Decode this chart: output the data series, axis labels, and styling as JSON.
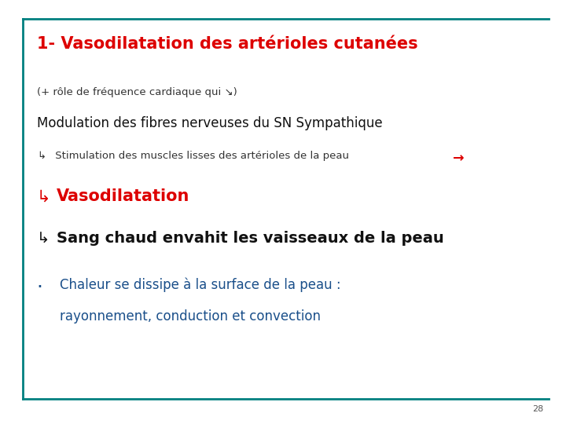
{
  "title": "1- Vasodilatation des artérioles cutanées",
  "title_color": "#dd0000",
  "title_fontsize": 15,
  "line1": "(+ rôle de fréquence cardiaque qui ↘)",
  "line1_color": "#333333",
  "line1_fontsize": 9.5,
  "line2": "Modulation des fibres nerveuses du SN Sympathique",
  "line2_color": "#111111",
  "line2_fontsize": 12,
  "line3_arrow": "↳",
  "line3_text": " Stimulation des muscles lisses des artérioles de la peau ",
  "line3_arrow2": "→",
  "line3_color": "#333333",
  "line3_arrow2_color": "#dd0000",
  "line3_fontsize": 9.5,
  "line4_arrow": "↳",
  "line4_text": "Vasodilatation",
  "line4_color": "#dd0000",
  "line4_fontsize": 15,
  "line5_arrow": "↳",
  "line5_text": "Sang chaud envahit les vaisseaux de la peau",
  "line5_color": "#111111",
  "line5_fontsize": 14,
  "line6_bullet": "·",
  "line6_text1": "Chaleur se dissipe à la surface de la peau :",
  "line6_text2": "rayonnement, conduction et convection",
  "line6_color": "#1a4f8a",
  "line6_fontsize": 12,
  "border_color": "#008080",
  "bg_color": "#ffffff",
  "page_number": "28",
  "page_number_color": "#555555",
  "page_number_fontsize": 8
}
